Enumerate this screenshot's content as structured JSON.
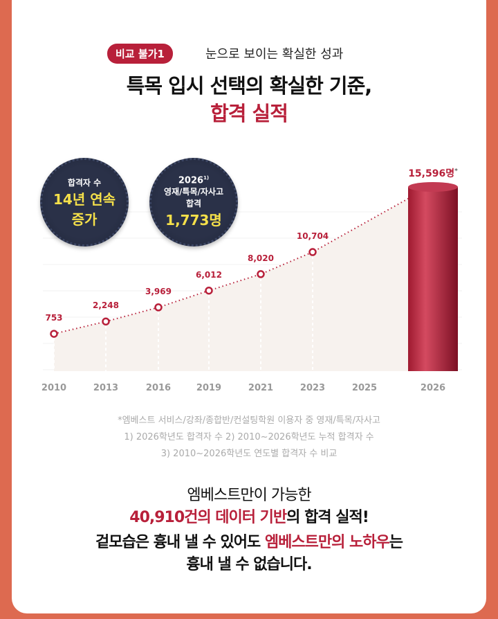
{
  "badge": "비교 불가1",
  "subtitle": "눈으로 보이는 확실한 성과",
  "title_line1": "특목 입시 선택의 확실한 기준,",
  "title_line2": "합격 실적",
  "medal1": {
    "l1": "합격자 수",
    "l2": "14년 연속",
    "l3": "증가"
  },
  "medal2": {
    "l1": "2026",
    "sup": "1)",
    "l2": "영재/특목/자사고",
    "l3": "합격",
    "l4": "1,773명"
  },
  "chart_data": {
    "type": "line",
    "x": [
      "2010",
      "2013",
      "2016",
      "2019",
      "2021",
      "2023",
      "2025",
      "2026"
    ],
    "points": [
      {
        "x": "2010",
        "v": 753,
        "label": "753"
      },
      {
        "x": "2013",
        "v": 2248,
        "label": "2,248"
      },
      {
        "x": "2016",
        "v": 3969,
        "label": "3,969"
      },
      {
        "x": "2019",
        "v": 6012,
        "label": "6,012"
      },
      {
        "x": "2021",
        "v": 8020,
        "label": "8,020"
      },
      {
        "x": "2023",
        "v": 10704,
        "label": "10,704"
      }
    ],
    "bar": {
      "x": "2026",
      "v": 15596,
      "label": "15,596명",
      "mark": "*"
    }
  },
  "notes": [
    "*엠베스트 서비스/강좌/종합반/컨설팅학원 이용자 중 영재/특목/자사고",
    "1) 2026학년도 합격자 수    2) 2010~2026학년도 누적 합격자 수",
    "3) 2010~2026학년도 연도별 합격자 수 비교"
  ],
  "bottom": {
    "l1": "엠베스트만이 가능한",
    "l2a": "40,910건의 데이터 기반",
    "l2b": "의 합격 실적!",
    "l3a": "겉모습은 흉내 낼 수 있어도 ",
    "l3b": "엠베스트만의 노하우",
    "l3c": "는",
    "l4": "흉내 낼 수 없습니다."
  }
}
